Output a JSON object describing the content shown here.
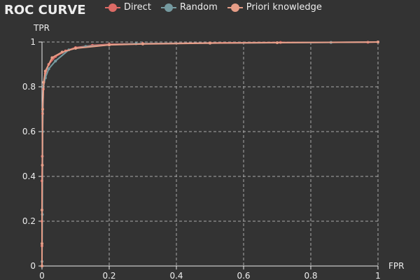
{
  "chart_data": {
    "type": "line",
    "title": "ROC CURVE",
    "xlabel": "FPR",
    "ylabel": "TPR",
    "xlim": [
      0,
      1
    ],
    "ylim": [
      0,
      1
    ],
    "x_ticks": [
      "0",
      "0.2",
      "0.4",
      "0.6",
      "0.8",
      "1"
    ],
    "y_ticks": [
      "0",
      "0.2",
      "0.4",
      "0.6",
      "0.8",
      "1"
    ],
    "grid": true,
    "legend_position": "top",
    "series": [
      {
        "name": "Direct",
        "color": "#dd6b66",
        "points": [
          [
            0,
            0
          ],
          [
            0,
            0.09
          ],
          [
            0,
            0.2
          ],
          [
            0,
            0.38
          ],
          [
            0.001,
            0.49
          ],
          [
            0.002,
            0.68
          ],
          [
            0.004,
            0.79
          ],
          [
            0.01,
            0.86
          ],
          [
            0.02,
            0.9
          ],
          [
            0.04,
            0.935
          ],
          [
            0.07,
            0.96
          ],
          [
            0.1,
            0.975
          ],
          [
            0.15,
            0.985
          ],
          [
            0.2,
            0.99
          ],
          [
            0.3,
            0.993
          ],
          [
            0.5,
            0.996
          ],
          [
            0.71,
            0.998
          ],
          [
            0.97,
            0.999
          ],
          [
            1,
            1
          ]
        ]
      },
      {
        "name": "Random",
        "color": "#759aa0",
        "points": [
          [
            0,
            0
          ],
          [
            0,
            0.02
          ],
          [
            0.001,
            0.23
          ],
          [
            0.002,
            0.6
          ],
          [
            0.004,
            0.8
          ],
          [
            0.01,
            0.84
          ],
          [
            0.02,
            0.88
          ],
          [
            0.04,
            0.915
          ],
          [
            0.08,
            0.965
          ],
          [
            0.13,
            0.98
          ],
          [
            0.2,
            0.987
          ],
          [
            0.28,
            0.992
          ],
          [
            0.5,
            0.995
          ],
          [
            0.86,
            0.998
          ],
          [
            1,
            1
          ]
        ]
      },
      {
        "name": "Priori knowledge",
        "color": "#e69d87",
        "points": [
          [
            0,
            0
          ],
          [
            0,
            0.1
          ],
          [
            0,
            0.25
          ],
          [
            0.001,
            0.45
          ],
          [
            0.002,
            0.7
          ],
          [
            0.005,
            0.82
          ],
          [
            0.01,
            0.87
          ],
          [
            0.03,
            0.93
          ],
          [
            0.06,
            0.955
          ],
          [
            0.1,
            0.972
          ],
          [
            0.2,
            0.987
          ],
          [
            0.3,
            0.991
          ],
          [
            0.5,
            0.995
          ],
          [
            0.7,
            0.997
          ],
          [
            1,
            1
          ]
        ]
      }
    ]
  }
}
